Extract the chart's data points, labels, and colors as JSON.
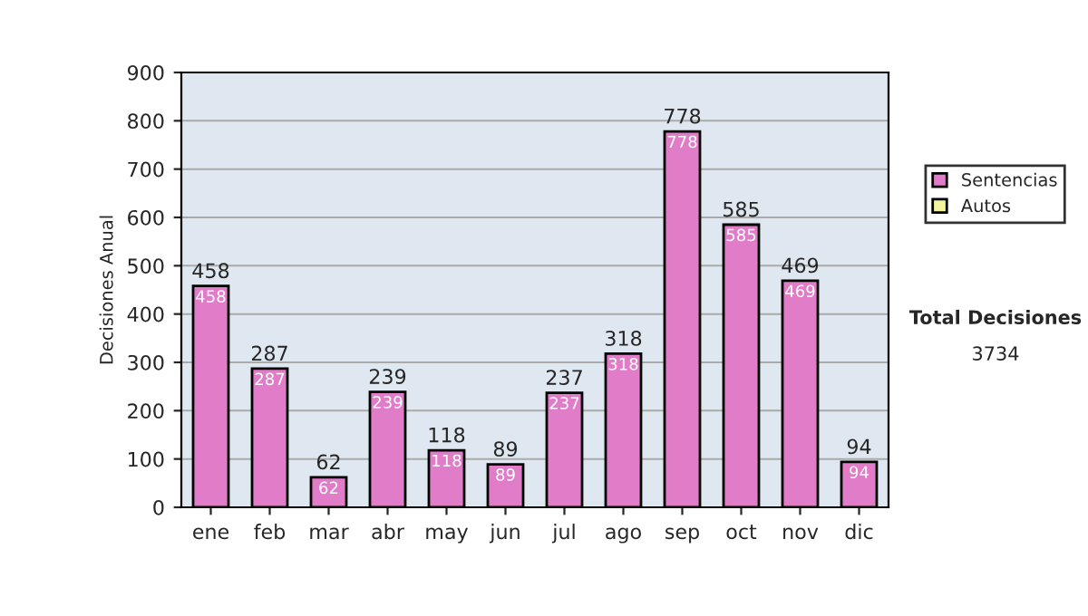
{
  "chart_data": {
    "type": "bar",
    "ylabel": "Decisiones Anual",
    "categories": [
      "ene",
      "feb",
      "mar",
      "abr",
      "may",
      "jun",
      "jul",
      "ago",
      "sep",
      "oct",
      "nov",
      "dic"
    ],
    "stacked": true,
    "series": [
      {
        "name": "Sentencias",
        "color": "#e07cc8",
        "values": [
          458,
          287,
          62,
          239,
          118,
          89,
          237,
          318,
          778,
          585,
          469,
          94
        ],
        "value_labels": [
          "458",
          "287",
          "62",
          "239",
          "118",
          "89",
          "237",
          "318",
          "778",
          "585",
          "469",
          "94"
        ]
      },
      {
        "name": "Autos",
        "color": "#f4f4a0",
        "values": [
          0,
          0,
          0,
          0,
          0,
          0,
          0,
          0,
          0,
          0,
          0,
          0
        ]
      }
    ],
    "totals": [
      "458",
      "287",
      "62",
      "239",
      "118",
      "89",
      "237",
      "318",
      "778",
      "585",
      "469",
      "94"
    ],
    "ylim": [
      0,
      900
    ],
    "yticks": [
      0,
      100,
      200,
      300,
      400,
      500,
      600,
      700,
      800,
      900
    ],
    "grid": "y",
    "legend": "right",
    "annotations": [
      "Total Decisiones",
      "3734"
    ]
  }
}
